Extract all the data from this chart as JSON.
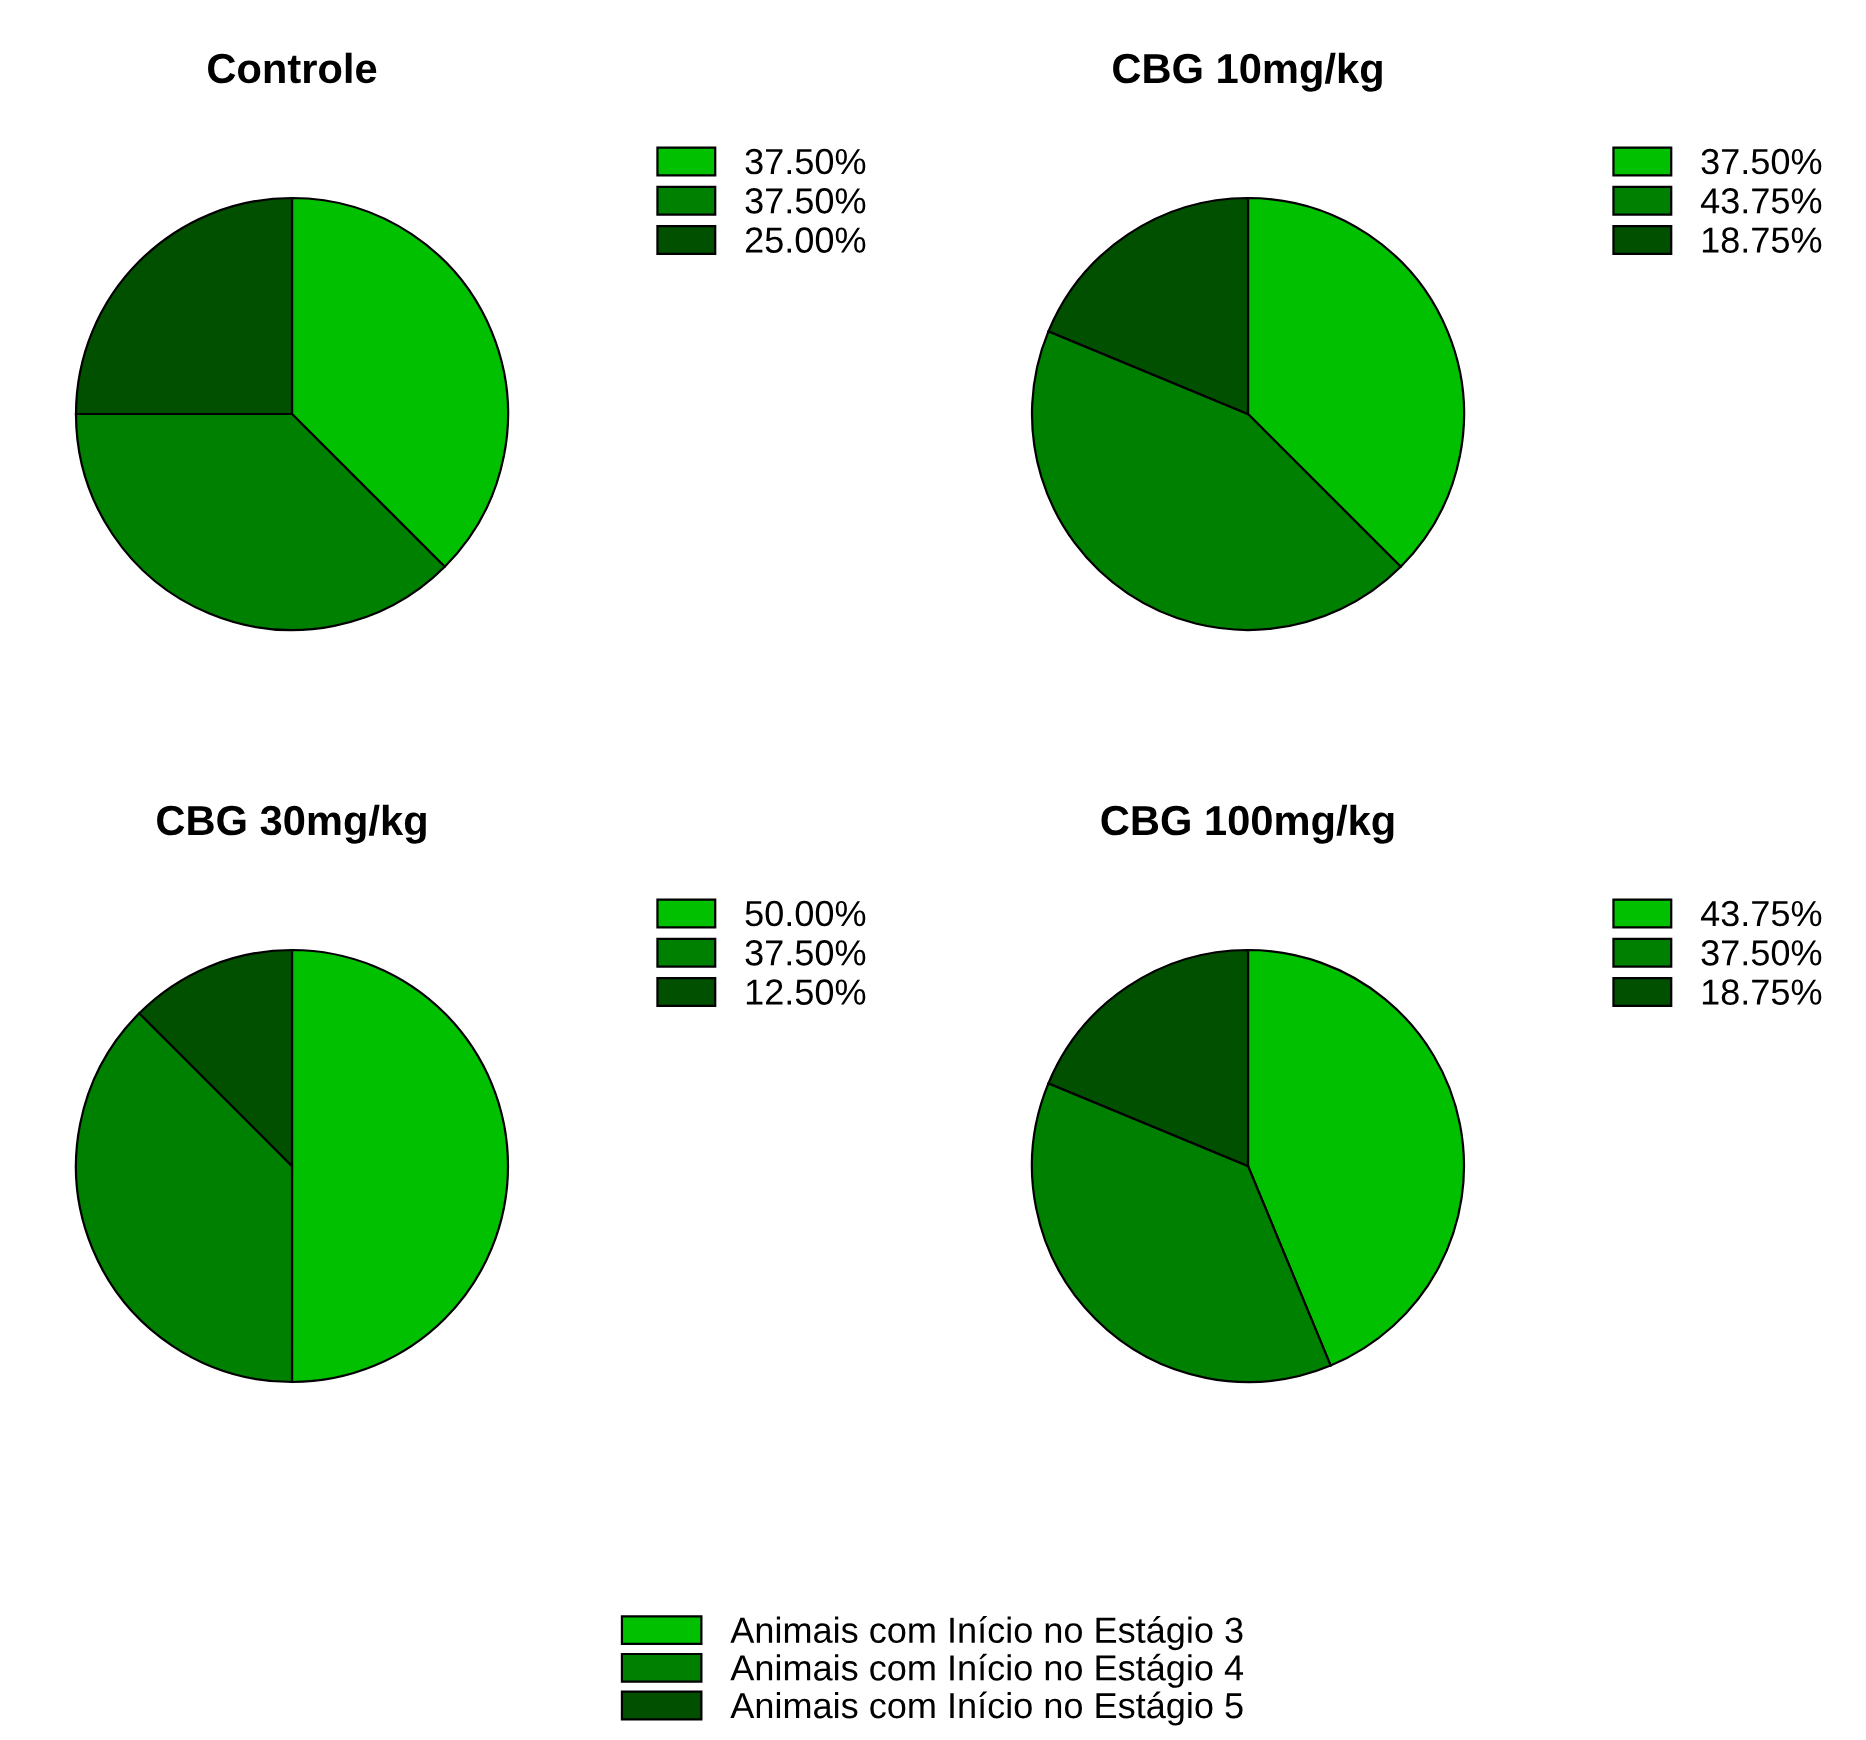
{
  "chart_data": [
    {
      "type": "pie",
      "title": "Controle",
      "categories": [
        "37.50%",
        "37.50%",
        "25.00%"
      ],
      "values": [
        37.5,
        37.5,
        25.0
      ],
      "colors": [
        "#00c000",
        "#008000",
        "#005000"
      ],
      "legend": "right"
    },
    {
      "type": "pie",
      "title": "CBG 10mg/kg",
      "categories": [
        "37.50%",
        "43.75%",
        "18.75%"
      ],
      "values": [
        37.5,
        43.75,
        18.75
      ],
      "colors": [
        "#00c000",
        "#008000",
        "#005000"
      ],
      "legend": "right"
    },
    {
      "type": "pie",
      "title": "CBG 30mg/kg",
      "categories": [
        "50.00%",
        "37.50%",
        "12.50%"
      ],
      "values": [
        50.0,
        37.5,
        12.5
      ],
      "colors": [
        "#00c000",
        "#008000",
        "#005000"
      ],
      "legend": "right"
    },
    {
      "type": "pie",
      "title": "CBG 100mg/kg",
      "categories": [
        "43.75%",
        "37.50%",
        "18.75%"
      ],
      "values": [
        43.75,
        37.5,
        18.75
      ],
      "colors": [
        "#00c000",
        "#008000",
        "#005000"
      ],
      "legend": "right"
    },
    {
      "type": "other",
      "categories": [
        "Animais com Início no Estágio 3",
        "Animais com Início no Estágio 4",
        "Animais com Início no Estágio 5"
      ],
      "colors": [
        "#00c000",
        "#008000",
        "#005000"
      ]
    }
  ]
}
